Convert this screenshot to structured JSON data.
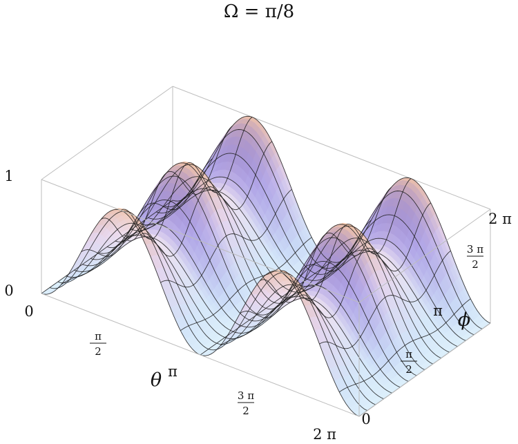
{
  "chart_data": {
    "type": "surface3d",
    "title": "Ω = π/8",
    "xlabel": "θ",
    "ylabel": "ϕ",
    "zlim": [
      0,
      1
    ],
    "xlim_text": [
      "0",
      "2π"
    ],
    "ylim_text": [
      "0",
      "2π"
    ],
    "x_ticks": [
      {
        "plain": "0"
      },
      {
        "num": "π",
        "den": "2"
      },
      {
        "plain": "π"
      },
      {
        "num": "3 π",
        "den": "2"
      },
      {
        "plain": "2 π"
      }
    ],
    "y_ticks": [
      {
        "plain": "0"
      },
      {
        "num": "π",
        "den": "2"
      },
      {
        "plain": "π"
      },
      {
        "num": "3 π",
        "den": "2"
      },
      {
        "plain": "2 π"
      }
    ],
    "z_ticks": [
      "0",
      "1"
    ],
    "surface": {
      "description_formula": "z(θ,ϕ) = ((1 − cos 2θ)/2) · (0.55 + 0.45 · cos²ϕ)",
      "theta_periods": 2,
      "phi_periods": 2,
      "z_min": 0,
      "z_max": 1
    },
    "colors": {
      "peak": "#f2c4a8",
      "mid": "#f4e4f0",
      "blue": "#4a45d8",
      "valley": "#ddf0fb",
      "underside": "#cc3b55",
      "grid": "#1a1a1a",
      "box": "#bdbdbd"
    }
  }
}
